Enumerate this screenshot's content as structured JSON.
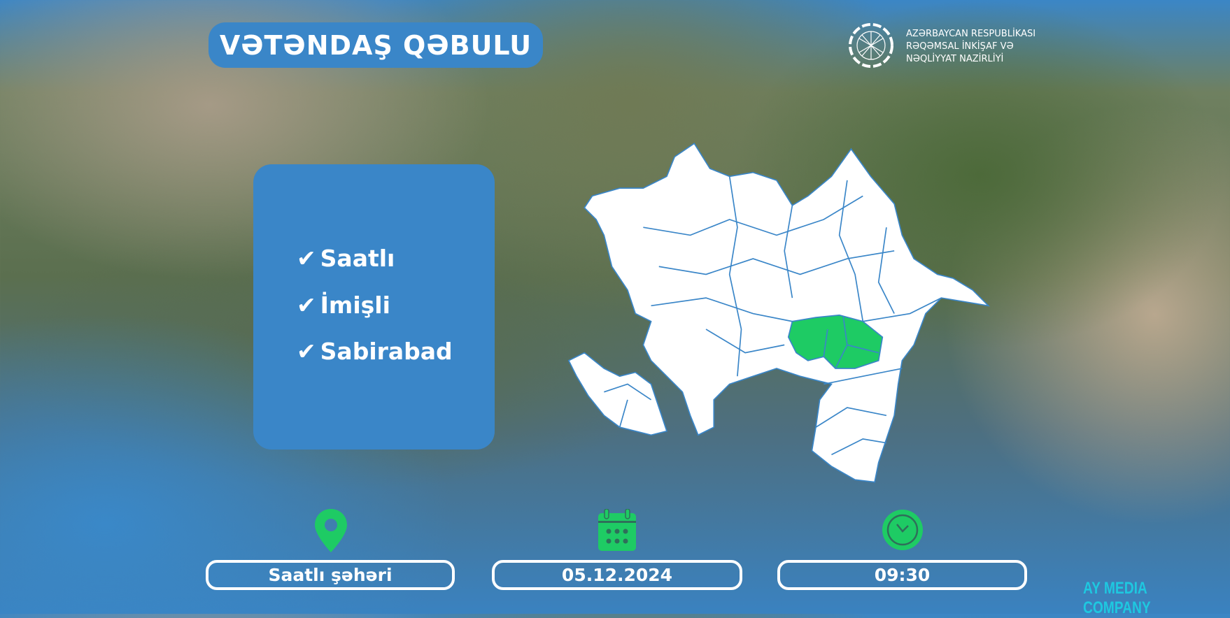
{
  "header": {
    "title": "VƏTƏNDAŞ QƏBULU"
  },
  "ministry": {
    "line1": "AZƏRBAYCAN RESPUBLİKASI",
    "line2": "RƏQƏMSAL İNKİŞAF VƏ",
    "line3": "NƏQLİYYAT NAZİRLİYİ"
  },
  "regions": [
    {
      "label": "Saatlı"
    },
    {
      "label": "İmişli"
    },
    {
      "label": "Sabirabad"
    }
  ],
  "info": {
    "location": "Saatlı şəhəri",
    "date": "05.12.2024",
    "time": "09:30"
  },
  "brand": "AY MEDIA COMPANY",
  "colors": {
    "accent": "#3a86c8",
    "highlight": "#1ecb64",
    "brand": "#1ec8e0"
  }
}
